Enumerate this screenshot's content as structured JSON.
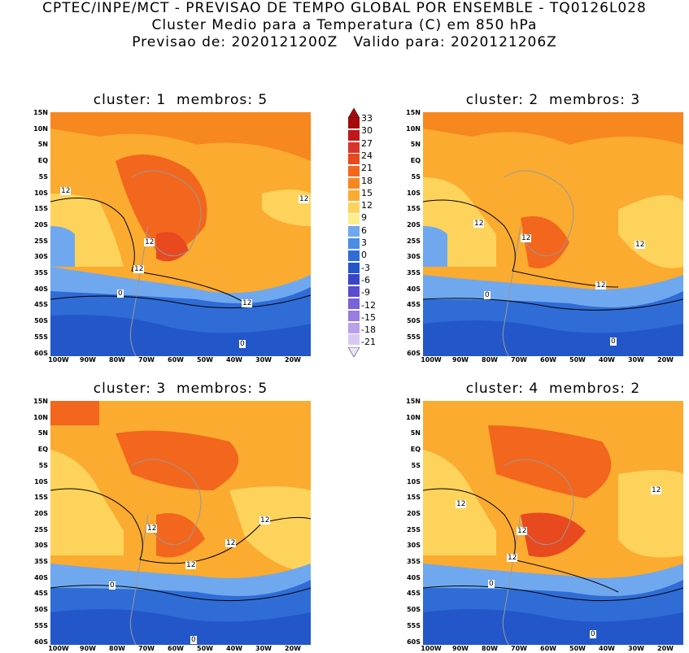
{
  "header": {
    "line1": "CPTEC/INPE/MCT - PREVISAO DE TEMPO GLOBAL POR ENSEMBLE - TQ0126L028",
    "line2": "Cluster Medio para a Temperatura (C) em 850 hPa",
    "line3": "Previsao de: 2020121200Z   Valido para: 2020121206Z"
  },
  "panels": [
    {
      "title": "cluster: 1  membros: 5",
      "contour_labels": [
        "12",
        "12",
        "12",
        "12",
        "12",
        "0",
        "0"
      ]
    },
    {
      "title": "cluster: 2  membros: 3",
      "contour_labels": [
        "12",
        "12",
        "12",
        "12",
        "0",
        "0"
      ]
    },
    {
      "title": "cluster: 3  membros: 5",
      "contour_labels": [
        "12",
        "12",
        "12",
        "12",
        "0",
        "0"
      ]
    },
    {
      "title": "cluster: 4  membros: 2",
      "contour_labels": [
        "12",
        "12",
        "12",
        "12",
        "0",
        "0"
      ]
    }
  ],
  "axes": {
    "lat_labels": [
      "15N",
      "10N",
      "5N",
      "EQ",
      "5S",
      "10S",
      "15S",
      "20S",
      "25S",
      "30S",
      "35S",
      "40S",
      "45S",
      "50S",
      "55S",
      "60S"
    ],
    "lon_labels": [
      "100W",
      "90W",
      "80W",
      "70W",
      "60W",
      "50W",
      "40W",
      "30W",
      "20W"
    ]
  },
  "colorbar": {
    "labels": [
      "33",
      "30",
      "27",
      "24",
      "21",
      "18",
      "15",
      "12",
      "9",
      "6",
      "3",
      "0",
      "-3",
      "-6",
      "-9",
      "-12",
      "-15",
      "-18",
      "-21"
    ],
    "colors": [
      "#a50b0b",
      "#c0171d",
      "#d9342a",
      "#e8491f",
      "#f3661d",
      "#f7871f",
      "#fbab2f",
      "#fdd35c",
      "#fbee8c",
      "#6fa8ef",
      "#4b8ce5",
      "#2f6cd6",
      "#2357c9",
      "#3a45c6",
      "#5a4bcf",
      "#7a62d8",
      "#987ce0",
      "#b9a0ea",
      "#d9c8f3"
    ]
  }
}
